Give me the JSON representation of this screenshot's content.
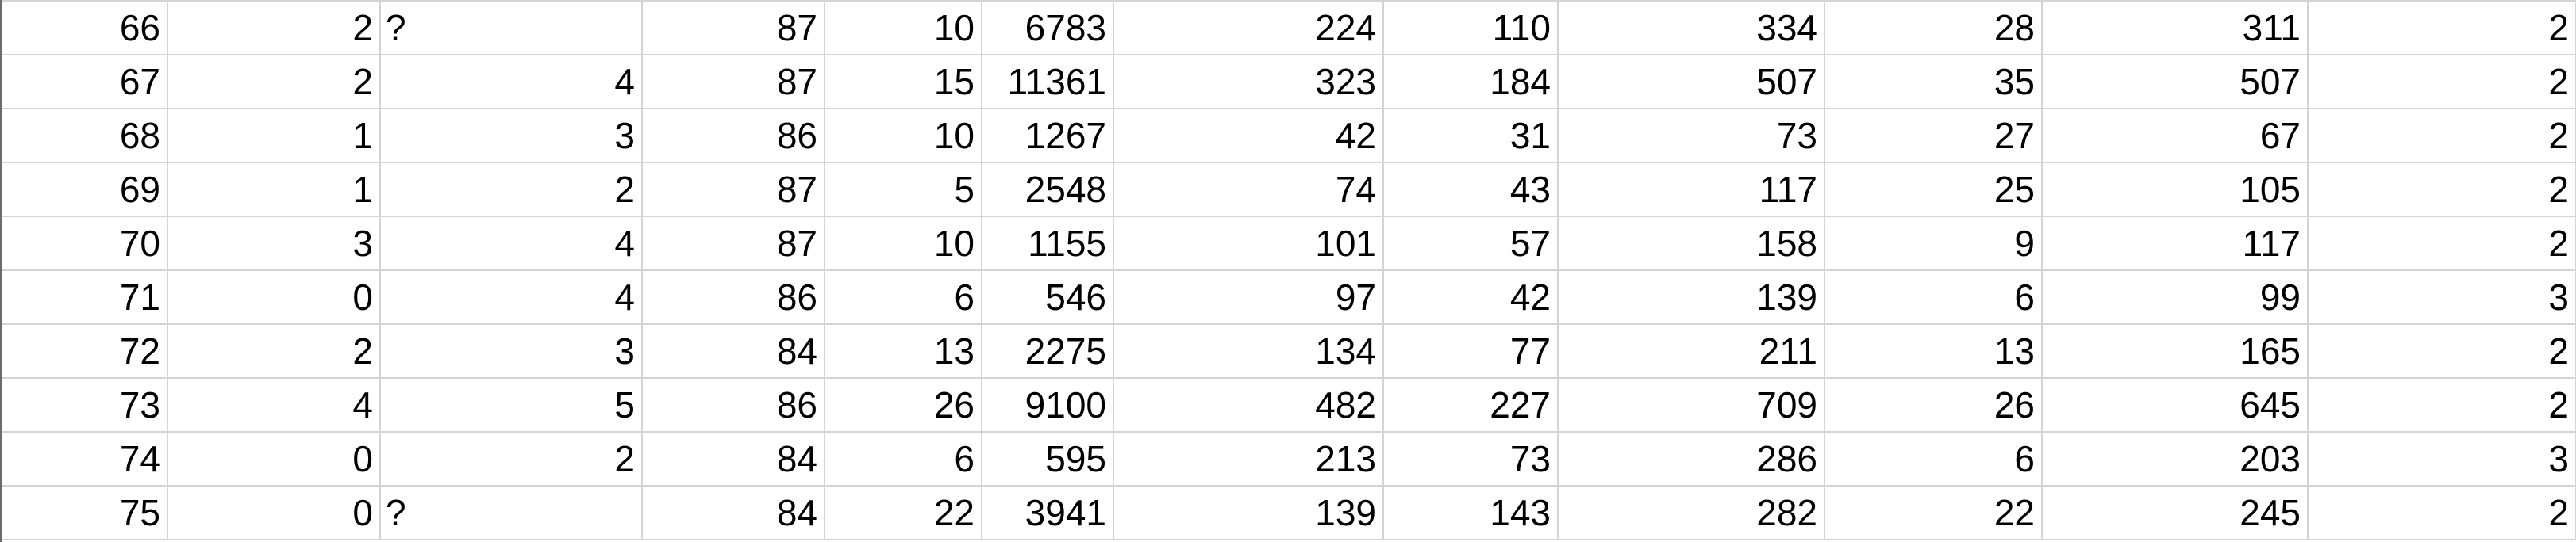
{
  "sheet": {
    "rows": [
      [
        "66",
        "2",
        "?",
        "87",
        "10",
        "6783",
        "224",
        "110",
        "334",
        "28",
        "311",
        "2"
      ],
      [
        "67",
        "2",
        "4",
        "87",
        "15",
        "11361",
        "323",
        "184",
        "507",
        "35",
        "507",
        "2"
      ],
      [
        "68",
        "1",
        "3",
        "86",
        "10",
        "1267",
        "42",
        "31",
        "73",
        "27",
        "67",
        "2"
      ],
      [
        "69",
        "1",
        "2",
        "87",
        "5",
        "2548",
        "74",
        "43",
        "117",
        "25",
        "105",
        "2"
      ],
      [
        "70",
        "3",
        "4",
        "87",
        "10",
        "1155",
        "101",
        "57",
        "158",
        "9",
        "117",
        "2"
      ],
      [
        "71",
        "0",
        "4",
        "86",
        "6",
        "546",
        "97",
        "42",
        "139",
        "6",
        "99",
        "3"
      ],
      [
        "72",
        "2",
        "3",
        "84",
        "13",
        "2275",
        "134",
        "77",
        "211",
        "13",
        "165",
        "2"
      ],
      [
        "73",
        "4",
        "5",
        "86",
        "26",
        "9100",
        "482",
        "227",
        "709",
        "26",
        "645",
        "2"
      ],
      [
        "74",
        "0",
        "2",
        "84",
        "6",
        "595",
        "213",
        "73",
        "286",
        "6",
        "203",
        "3"
      ],
      [
        "75",
        "0",
        "?",
        "84",
        "22",
        "3941",
        "139",
        "143",
        "282",
        "22",
        "245",
        "2"
      ]
    ]
  }
}
